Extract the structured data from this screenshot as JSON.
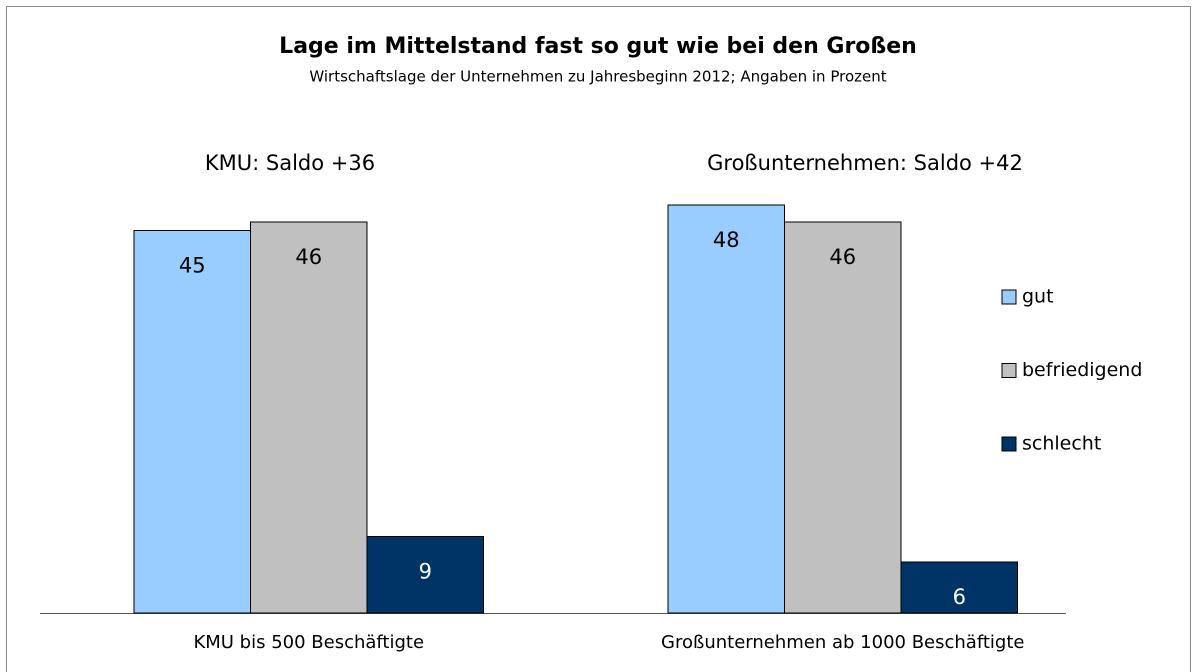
{
  "chart_data": {
    "type": "bar",
    "title": "Lage im Mittelstand fast so gut wie bei den Großen",
    "subtitle": "Wirtschaftslage der Unternehmen zu Jahresbeginn 2012; Angaben in Prozent",
    "annotations": [
      "KMU: Saldo +36",
      "Großunternehmen: Saldo +42"
    ],
    "categories": [
      "KMU bis 500 Beschäftigte",
      "Großunternehmen ab 1000 Beschäftigte"
    ],
    "series": [
      {
        "name": "gut",
        "color": "#99ccff",
        "values": [
          45,
          48
        ]
      },
      {
        "name": "befriedigend",
        "color": "#c0c0c0",
        "values": [
          46,
          46
        ]
      },
      {
        "name": "schlecht",
        "color": "#003366",
        "values": [
          9,
          6
        ]
      }
    ],
    "legend": "right"
  }
}
